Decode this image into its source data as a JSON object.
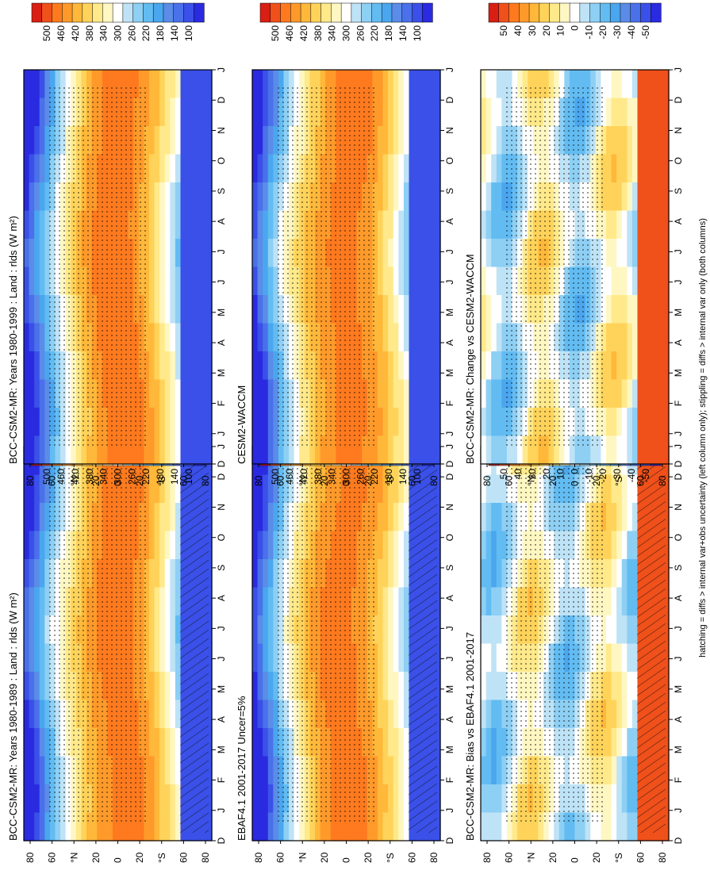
{
  "footer": "hatching = diffs > internal var+obs uncertainty (left column only); stippling = diffs > internal var only (both columns)",
  "colors": {
    "abs": [
      "#2a2ae0",
      "#3a50e8",
      "#4a70ea",
      "#5a8ce8",
      "#4aa6ee",
      "#62bcf2",
      "#8ecff4",
      "#bfe3f6",
      "#ffffff",
      "#fff7c2",
      "#ffe98a",
      "#ffd35a",
      "#ffb83a",
      "#ff9a2a",
      "#ff7a1e",
      "#f0501a",
      "#d91e14"
    ],
    "diff": [
      "#2a2ae0",
      "#3a50e8",
      "#4a70ea",
      "#5a8ce8",
      "#4aa6ee",
      "#62bcf2",
      "#8ecff4",
      "#bfe3f6",
      "#ffffff",
      "#fff7c2",
      "#ffe98a",
      "#ffd35a",
      "#ffb83a",
      "#ff9a2a",
      "#ff7a1e",
      "#f0501a",
      "#d91e14"
    ]
  },
  "chart_data": [
    {
      "id": "bcc-1980-1989",
      "type": "heatmap",
      "title": "BCC-CSM2-MR: Years 1980-1989 : Land : rlds (W m²)",
      "months": [
        "D",
        "J",
        "F",
        "M",
        "A",
        "M",
        "J",
        "J",
        "A",
        "S",
        "O",
        "N",
        "D",
        "J"
      ],
      "lat_labels": [
        "80",
        "60",
        "°N",
        "20",
        "0",
        "20",
        "°S",
        "60",
        "80"
      ],
      "lat_range": [
        -90,
        90
      ],
      "colorbar_ticks": [
        "500",
        "460",
        "420",
        "380",
        "340",
        "300",
        "260",
        "220",
        "180",
        "140",
        "100"
      ],
      "units": "W m-2",
      "hatching": true,
      "stippling": true
    },
    {
      "id": "bcc-1980-1999",
      "type": "heatmap",
      "title": "BCC-CSM2-MR: Years 1980-1999 : Land : rlds (W m²)",
      "months": [
        "D",
        "J",
        "F",
        "M",
        "A",
        "M",
        "J",
        "J",
        "A",
        "S",
        "O",
        "N",
        "D",
        "J"
      ],
      "lat_labels": [
        "80",
        "60",
        "°N",
        "20",
        "0",
        "20",
        "°S",
        "60",
        "80"
      ],
      "lat_range": [
        -90,
        90
      ],
      "colorbar_ticks": [
        "500",
        "460",
        "420",
        "380",
        "340",
        "300",
        "260",
        "220",
        "180",
        "140",
        "100"
      ],
      "units": "W m-2",
      "hatching": false,
      "stippling": true
    },
    {
      "id": "ebaf",
      "type": "heatmap",
      "title": "EBAF4.1 2001-2017 Uncer=5%",
      "months": [
        "D",
        "J",
        "F",
        "M",
        "A",
        "M",
        "J",
        "J",
        "A",
        "S",
        "O",
        "N",
        "D",
        "J"
      ],
      "lat_labels": [
        "80",
        "60",
        "°N",
        "20",
        "0",
        "20",
        "°S",
        "60",
        "80"
      ],
      "lat_range": [
        -90,
        90
      ],
      "colorbar_ticks": [
        "500",
        "460",
        "420",
        "380",
        "340",
        "300",
        "260",
        "220",
        "180",
        "140",
        "100"
      ],
      "units": "W m-2",
      "hatching": true,
      "stippling": true
    },
    {
      "id": "cesm",
      "type": "heatmap",
      "title": "CESM2-WACCM",
      "months": [
        "D",
        "J",
        "F",
        "M",
        "A",
        "M",
        "J",
        "J",
        "A",
        "S",
        "O",
        "N",
        "D",
        "J"
      ],
      "lat_labels": [
        "80",
        "60",
        "°N",
        "20",
        "0",
        "20",
        "°S",
        "60",
        "80"
      ],
      "lat_range": [
        -90,
        90
      ],
      "colorbar_ticks": [
        "500",
        "460",
        "420",
        "380",
        "340",
        "300",
        "260",
        "220",
        "180",
        "140",
        "100"
      ],
      "units": "W m-2",
      "hatching": false,
      "stippling": true
    },
    {
      "id": "bias",
      "type": "heatmap",
      "title": "BCC-CSM2-MR: Bias vs EBAF4.1 2001-2017",
      "months": [
        "D",
        "J",
        "F",
        "M",
        "A",
        "M",
        "J",
        "J",
        "A",
        "S",
        "O",
        "N",
        "D",
        "J"
      ],
      "lat_labels": [
        "80",
        "60",
        "°N",
        "20",
        "0",
        "20",
        "°S",
        "60",
        "80"
      ],
      "lat_range": [
        -90,
        90
      ],
      "colorbar_ticks": [
        "50",
        "40",
        "30",
        "20",
        "10",
        "0",
        "-10",
        "-20",
        "-30",
        "-40",
        "-50"
      ],
      "units": "W m-2",
      "hatching": true,
      "stippling": true
    },
    {
      "id": "change",
      "type": "heatmap",
      "title": "BCC-CSM2-MR: Change vs CESM2-WACCM",
      "months": [
        "D",
        "J",
        "F",
        "M",
        "A",
        "M",
        "J",
        "J",
        "A",
        "S",
        "O",
        "N",
        "D",
        "J"
      ],
      "lat_labels": [
        "80",
        "60",
        "°N",
        "20",
        "0",
        "20",
        "°S",
        "60",
        "80"
      ],
      "lat_range": [
        -90,
        90
      ],
      "colorbar_ticks": [
        "50",
        "40",
        "30",
        "20",
        "10",
        "0",
        "-10",
        "-20",
        "-30",
        "-40",
        "-50"
      ],
      "units": "W m-2",
      "hatching": false,
      "stippling": true
    }
  ]
}
